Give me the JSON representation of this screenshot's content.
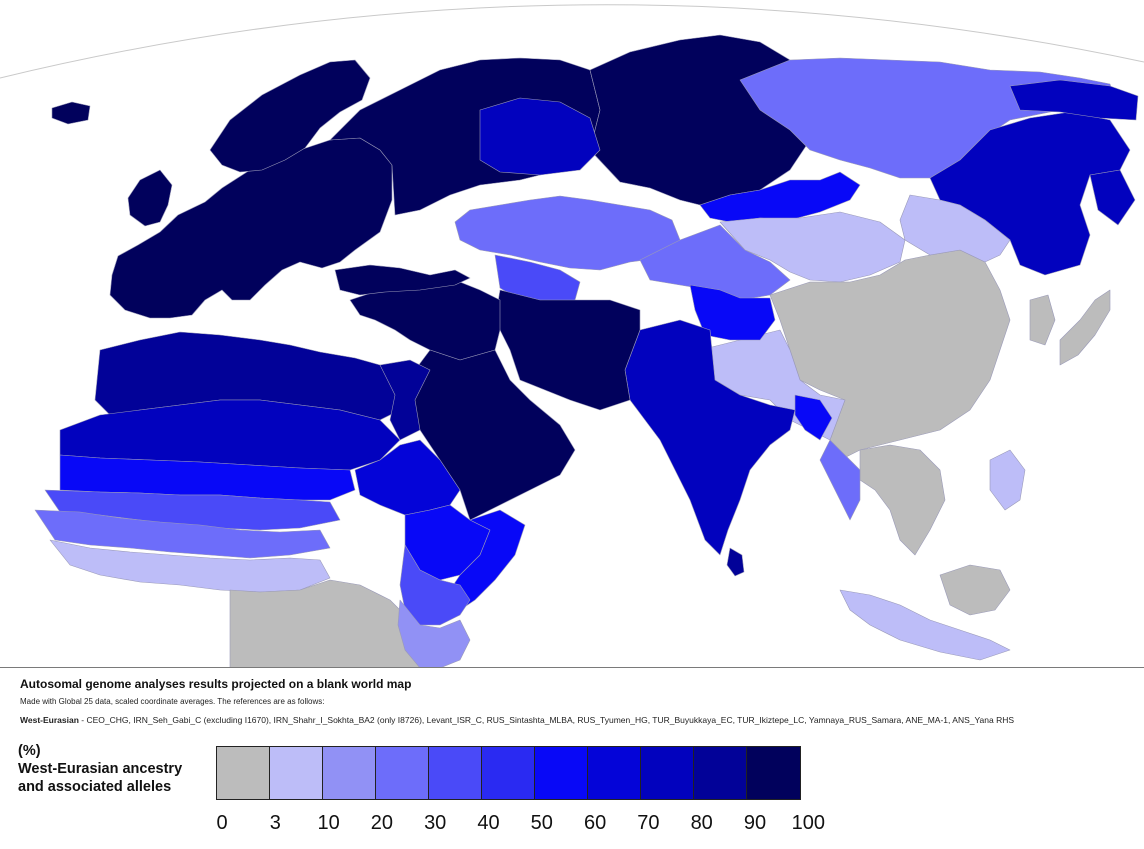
{
  "map": {
    "ocean_color": "#ffffff",
    "border_color": "#9a9ab8",
    "regions": [
      {
        "name": "Europe",
        "bin": 10
      },
      {
        "name": "Scandinavia",
        "bin": 10
      },
      {
        "name": "British Isles",
        "bin": 10
      },
      {
        "name": "Iceland",
        "bin": 10
      },
      {
        "name": "Western Russia",
        "bin": 10
      },
      {
        "name": "Central Siberia",
        "bin": 10
      },
      {
        "name": "West Siberian Plain",
        "bin": 8
      },
      {
        "name": "Northern Siberia",
        "bin": 3
      },
      {
        "name": "Far East Russia",
        "bin": 8
      },
      {
        "name": "Kamchatka",
        "bin": 8
      },
      {
        "name": "Chukotka",
        "bin": 8
      },
      {
        "name": "Siberia south",
        "bin": 6
      },
      {
        "name": "Kazakhstan",
        "bin": 3
      },
      {
        "name": "Central Asia",
        "bin": 4
      },
      {
        "name": "Mongolia",
        "bin": 1
      },
      {
        "name": "Western Mongolia",
        "bin": 3
      },
      {
        "name": "China",
        "bin": 0
      },
      {
        "name": "North China",
        "bin": 1
      },
      {
        "name": "Tibet",
        "bin": 1
      },
      {
        "name": "Xinjiang",
        "bin": 6
      },
      {
        "name": "Korea",
        "bin": 0
      },
      {
        "name": "Japan",
        "bin": 0
      },
      {
        "name": "Southeast Asia",
        "bin": 0
      },
      {
        "name": "Myanmar",
        "bin": 3
      },
      {
        "name": "Bangladesh",
        "bin": 6
      },
      {
        "name": "India",
        "bin": 8
      },
      {
        "name": "Sri Lanka",
        "bin": 9
      },
      {
        "name": "Pakistan / Iran / Afghanistan",
        "bin": 10
      },
      {
        "name": "Middle East",
        "bin": 10
      },
      {
        "name": "Arabia",
        "bin": 10
      },
      {
        "name": "Turkey / Caucasus",
        "bin": 10
      },
      {
        "name": "North Africa",
        "bin": 9
      },
      {
        "name": "Sahara",
        "bin": 8
      },
      {
        "name": "Egypt",
        "bin": 9
      },
      {
        "name": "Sahel",
        "bin": 6
      },
      {
        "name": "Sahel south",
        "bin": 4
      },
      {
        "name": "West Africa north",
        "bin": 3
      },
      {
        "name": "West Africa coast",
        "bin": 1
      },
      {
        "name": "Central Africa",
        "bin": 0
      },
      {
        "name": "Sudan",
        "bin": 7
      },
      {
        "name": "Ethiopia",
        "bin": 6
      },
      {
        "name": "Somalia",
        "bin": 6
      },
      {
        "name": "Kenya / Tanzania",
        "bin": 4
      },
      {
        "name": "East Africa interior",
        "bin": 2
      },
      {
        "name": "Philippines",
        "bin": 1
      },
      {
        "name": "Indonesia",
        "bin": 1
      },
      {
        "name": "Borneo / New Guinea",
        "bin": 0
      }
    ]
  },
  "caption": {
    "title": "Autosomal genome analyses results projected on a blank world map",
    "subtitle": "Made with Global 25 data, scaled coordinate averages. The references are as follows:",
    "refs_label": "West-Eurasian",
    "refs_text": " - CEO_CHG, IRN_Seh_Gabi_C (excluding I1670), IRN_Shahr_I_Sokhta_BA2 (only I8726), Levant_ISR_C, RUS_Sintashta_MLBA, RUS_Tyumen_HG, TUR_Buyukkaya_EC, TUR_Ikiztepe_LC, Yamnaya_RUS_Samara, ANE_MA-1, ANS_Yana RHS"
  },
  "legend": {
    "unit": "(%)",
    "line1": "West-Eurasian ancestry",
    "line2": "and associated alleles",
    "colors": [
      "#bcbcbc",
      "#bdbdf8",
      "#9191f5",
      "#6d6dfa",
      "#4a4af8",
      "#2a2af2",
      "#0808f7",
      "#0404d8",
      "#0202be",
      "#020298",
      "#01015c"
    ],
    "ticks": [
      "0",
      "3",
      "10",
      "20",
      "30",
      "40",
      "50",
      "60",
      "70",
      "80",
      "90",
      "100"
    ]
  }
}
